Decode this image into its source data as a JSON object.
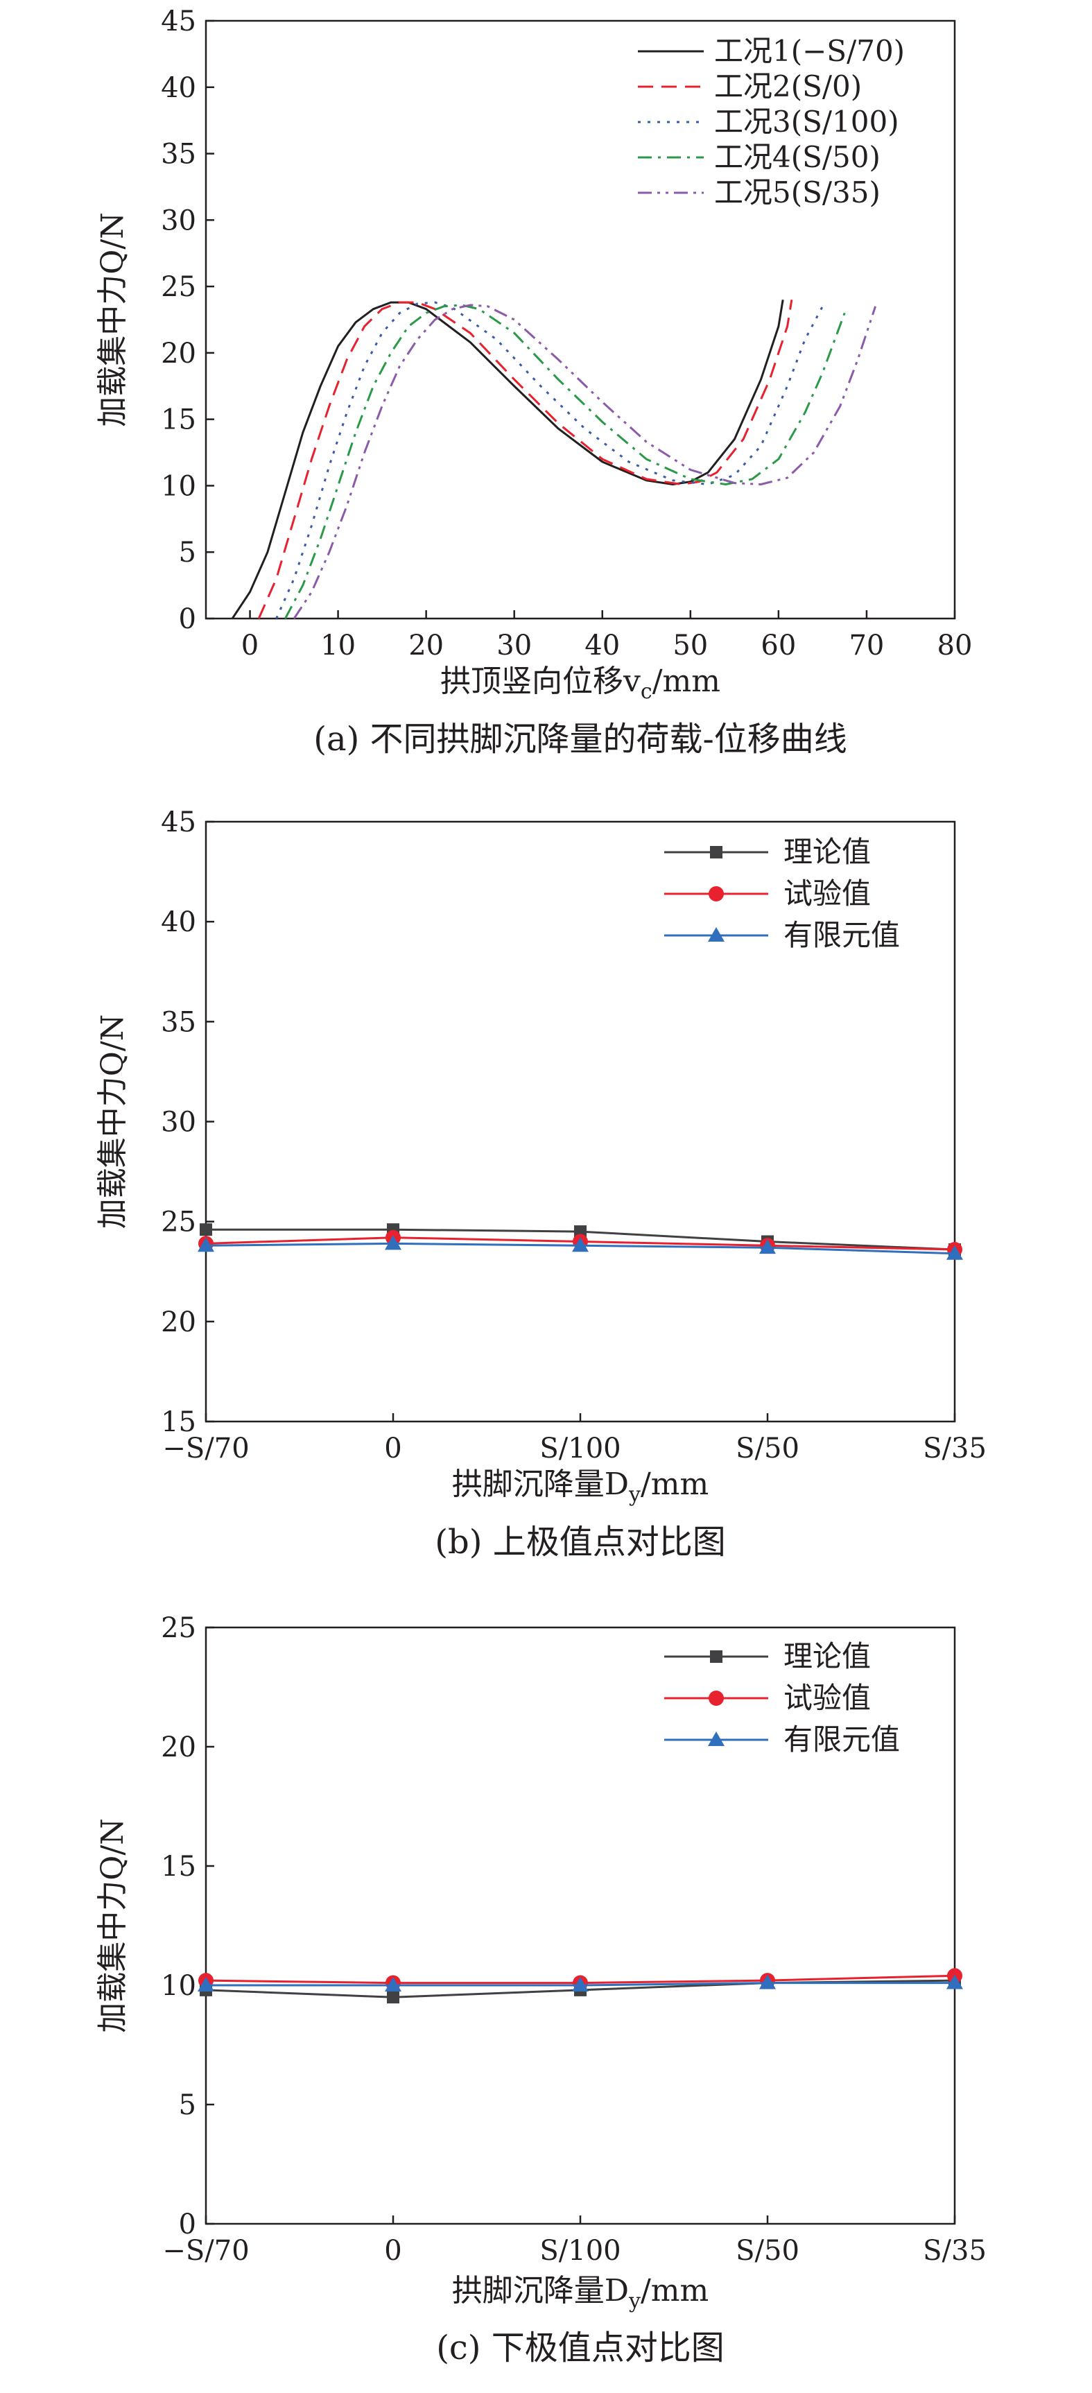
{
  "chart_data": [
    {
      "type": "line",
      "caption": "(a) 不同拱脚沉降量的荷载-位移曲线",
      "xlabel": "拱顶竖向位移v",
      "xlabel_sub": "c",
      "xlabel_unit": "/mm",
      "ylabel": "加载集中力Q/N",
      "xlim": [
        -5,
        80
      ],
      "ylim": [
        0,
        45
      ],
      "xticks": [
        0,
        10,
        20,
        30,
        40,
        50,
        60,
        70,
        80
      ],
      "yticks": [
        0,
        5,
        10,
        15,
        20,
        25,
        30,
        35,
        40,
        45
      ],
      "legend_position": "top-right",
      "series": [
        {
          "name": "工况1(−S/70)",
          "color": "#231f20",
          "dash": "solid",
          "x": [
            -2,
            0,
            2,
            4,
            6,
            8,
            10,
            12,
            14,
            16,
            18,
            20,
            25,
            30,
            35,
            40,
            45,
            48,
            50,
            52,
            55,
            58,
            60,
            60.5
          ],
          "y": [
            0,
            2,
            5,
            9.5,
            14,
            17.5,
            20.5,
            22.3,
            23.3,
            23.8,
            23.8,
            23.3,
            20.8,
            17.5,
            14.3,
            11.8,
            10.4,
            10.1,
            10.3,
            11,
            13.5,
            18,
            22,
            24
          ]
        },
        {
          "name": "工况2(S/0)",
          "color": "#e8212e",
          "dash": "dash",
          "x": [
            1,
            3,
            5,
            7,
            9,
            11,
            13,
            15,
            17,
            19,
            21,
            25,
            30,
            35,
            40,
            45,
            49,
            51,
            53,
            56,
            59,
            61,
            61.5
          ],
          "y": [
            0,
            3,
            7.5,
            12,
            16,
            19.5,
            22,
            23.3,
            23.8,
            23.8,
            23.3,
            21.5,
            18,
            14.7,
            12,
            10.5,
            10.1,
            10.3,
            11,
            13.5,
            18,
            22,
            24
          ]
        },
        {
          "name": "工况3(S/100)",
          "color": "#3a5ba8",
          "dash": "dot",
          "x": [
            3,
            5,
            7,
            9,
            11,
            13,
            15,
            17,
            19,
            21,
            23,
            28,
            33,
            38,
            43,
            48,
            52,
            55,
            58,
            61,
            63,
            65
          ],
          "y": [
            0,
            3,
            7,
            11.5,
            15.5,
            19,
            21.5,
            23,
            23.7,
            23.8,
            23.4,
            21,
            17.5,
            14.3,
            11.8,
            10.4,
            10.1,
            10.8,
            13,
            17.5,
            21,
            23.5
          ]
        },
        {
          "name": "工况4(S/50)",
          "color": "#2a9a48",
          "dash": "dashdot",
          "x": [
            4,
            6,
            8,
            10,
            12,
            14,
            16,
            18,
            20,
            22,
            24,
            26,
            30,
            35,
            40,
            45,
            50,
            54,
            57,
            60,
            63,
            65,
            67.5
          ],
          "y": [
            0,
            2.5,
            6,
            10,
            14,
            17.5,
            20,
            22,
            23,
            23.5,
            23.6,
            23.3,
            21.5,
            18,
            14.8,
            12,
            10.5,
            10.1,
            10.5,
            12,
            15.5,
            18.5,
            23
          ]
        },
        {
          "name": "工况5(S/35)",
          "color": "#8b5aa8",
          "dash": "dashdotdot",
          "x": [
            5,
            7,
            9,
            11,
            13,
            15,
            17,
            19,
            21,
            23,
            25,
            27,
            30,
            35,
            40,
            45,
            50,
            55,
            58,
            61,
            64,
            67,
            69,
            71
          ],
          "y": [
            0,
            2,
            5,
            8.5,
            12.5,
            16,
            19,
            21,
            22.5,
            23.3,
            23.6,
            23.5,
            22.5,
            19.5,
            16.3,
            13.3,
            11.2,
            10.2,
            10.1,
            10.6,
            12.5,
            16,
            19.5,
            23.5
          ]
        }
      ]
    },
    {
      "type": "line",
      "caption": "(b) 上极值点对比图",
      "xlabel": "拱脚沉降量D",
      "xlabel_sub": "y",
      "xlabel_unit": "/mm",
      "ylabel": "加载集中力Q/N",
      "categories": [
        "−S/70",
        "0",
        "S/100",
        "S/50",
        "S/35"
      ],
      "ylim": [
        15,
        45
      ],
      "yticks": [
        15,
        20,
        25,
        30,
        35,
        40,
        45
      ],
      "legend_position": "top-right",
      "series": [
        {
          "name": "理论值",
          "color": "#414042",
          "marker": "square",
          "values": [
            24.6,
            24.6,
            24.5,
            24.0,
            23.6
          ]
        },
        {
          "name": "试验值",
          "color": "#e8212e",
          "marker": "circle",
          "values": [
            23.9,
            24.2,
            24.0,
            23.8,
            23.6
          ]
        },
        {
          "name": "有限元值",
          "color": "#2f6fbe",
          "marker": "triangle",
          "values": [
            23.8,
            23.9,
            23.8,
            23.7,
            23.4
          ]
        }
      ]
    },
    {
      "type": "line",
      "caption": "(c) 下极值点对比图",
      "xlabel": "拱脚沉降量D",
      "xlabel_sub": "y",
      "xlabel_unit": "/mm",
      "ylabel": "加载集中力Q/N",
      "categories": [
        "−S/70",
        "0",
        "S/100",
        "S/50",
        "S/35"
      ],
      "ylim": [
        0,
        25
      ],
      "yticks": [
        0,
        5,
        10,
        15,
        20,
        25
      ],
      "legend_position": "top-right",
      "series": [
        {
          "name": "理论值",
          "color": "#414042",
          "marker": "square",
          "values": [
            9.8,
            9.5,
            9.8,
            10.1,
            10.2
          ]
        },
        {
          "name": "试验值",
          "color": "#e8212e",
          "marker": "circle",
          "values": [
            10.2,
            10.1,
            10.1,
            10.2,
            10.4
          ]
        },
        {
          "name": "有限元值",
          "color": "#2f6fbe",
          "marker": "triangle",
          "values": [
            10.0,
            10.0,
            10.0,
            10.1,
            10.1
          ]
        }
      ]
    }
  ]
}
